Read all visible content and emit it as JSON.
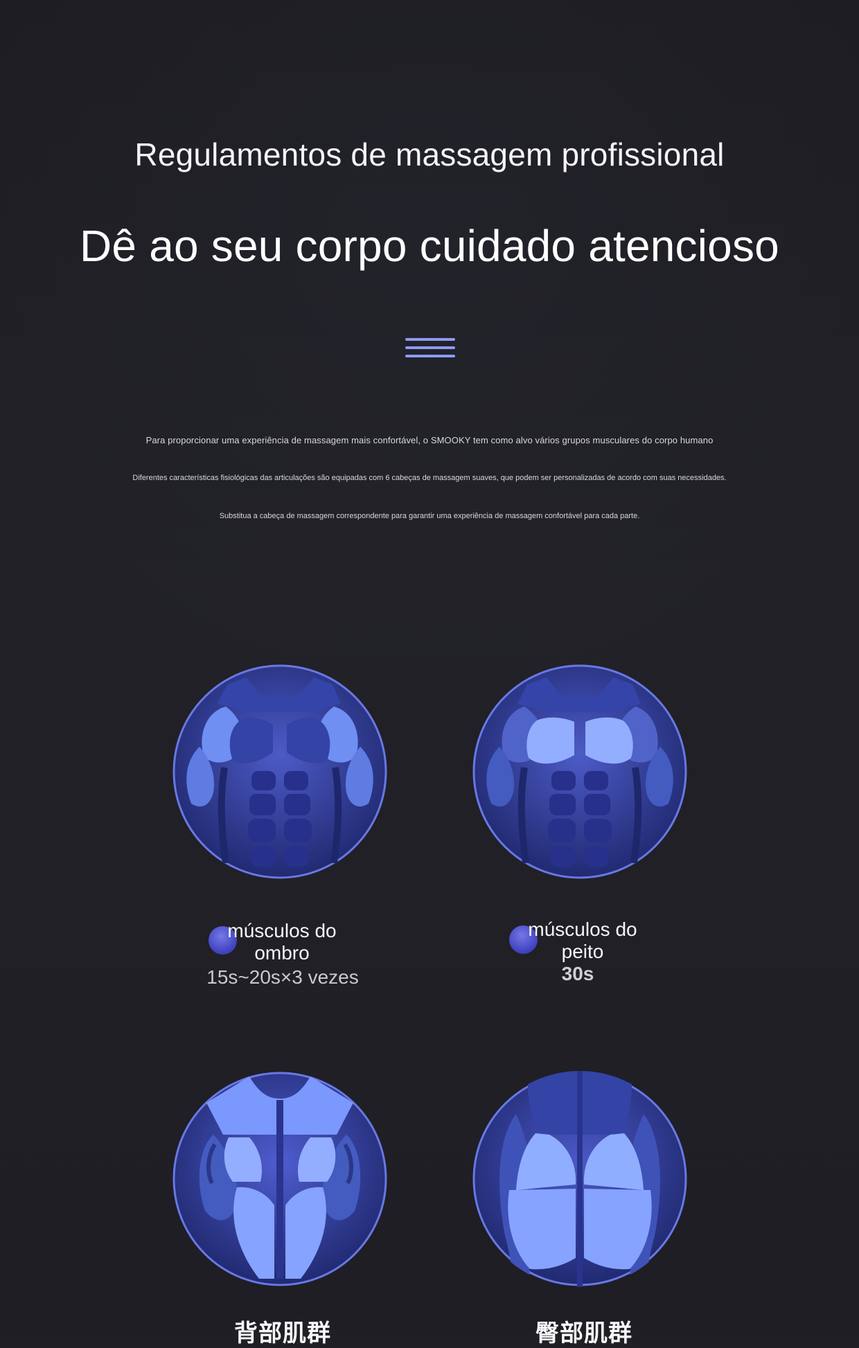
{
  "header": {
    "title": "Regulamentos de massagem profissional",
    "subtitle": "Dê ao seu corpo cuidado atencioso"
  },
  "decor": {
    "menu_icon": "three-horizontal-lines-icon",
    "accent": "#8d9af3"
  },
  "description": {
    "line_1": "Para proporcionar uma experiência de massagem mais confortável, o SMOOKY tem como alvo vários grupos musculares do corpo humano",
    "line_2": "Diferentes características fisiológicas das articulações são equipadas com 6 cabeças de massagem suaves, que podem ser personalizadas de acordo com suas necessidades.",
    "line_3": "Substitua a cabeça de massagem correspondente para garantir uma experiência de massagem confortável para cada parte."
  },
  "muscles": [
    {
      "label": "músculos do ombro",
      "time": "15s~20s×3 vezes",
      "icon": "shoulder-muscles-illustration"
    },
    {
      "label": "músculos do peito",
      "time": "30s",
      "icon": "chest-muscles-illustration"
    },
    {
      "label": "背部肌群",
      "icon": "back-muscles-illustration"
    },
    {
      "label": "臀部肌群",
      "icon": "glute-muscles-illustration"
    }
  ],
  "colors": {
    "background": "#1f1f24",
    "text": "#f4f4f6",
    "muscle_dark": "#2b3686",
    "muscle_light": "#89a3ff",
    "outline": "#5b68d8"
  }
}
